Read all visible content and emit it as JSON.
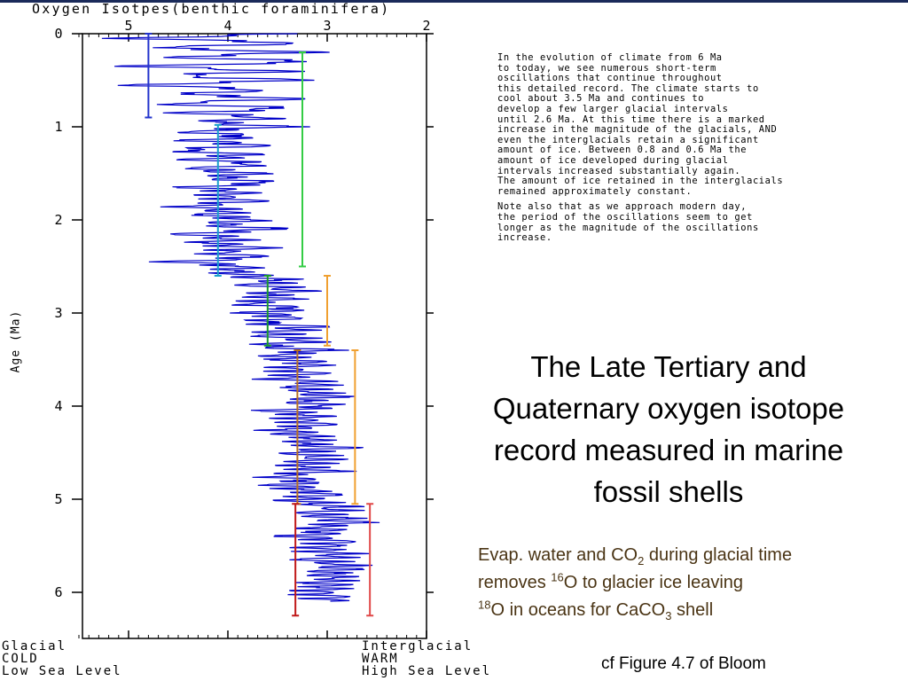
{
  "chart_data": {
    "type": "line",
    "title": "Oxygen Isotpes(benthic foraminifera)",
    "ylabel": "Age (Ma)",
    "xlim": [
      5.5,
      2.0
    ],
    "ylim": [
      0,
      6.5
    ],
    "x_ticks": [
      "5",
      "4",
      "3",
      "2"
    ],
    "x_tick_values": [
      5,
      4,
      3,
      2
    ],
    "y_ticks": [
      "0",
      "1",
      "2",
      "3",
      "4",
      "5",
      "6"
    ],
    "y_tick_values": [
      0,
      1,
      2,
      3,
      4,
      5,
      6
    ],
    "series": [
      {
        "age": [
          0.0,
          0.05,
          0.1,
          0.15,
          0.2,
          0.25,
          0.3,
          0.35,
          0.4,
          0.45,
          0.5,
          0.55,
          0.6,
          0.65,
          0.7,
          0.75,
          0.8,
          0.85,
          0.9,
          0.95,
          1.0,
          1.05,
          1.1,
          1.15,
          1.2,
          1.25,
          1.3,
          1.35,
          1.4,
          1.45,
          1.5,
          1.55,
          1.6,
          1.65,
          1.7,
          1.75,
          1.8,
          1.85,
          1.9,
          1.95,
          2.0,
          2.05,
          2.1,
          2.15,
          2.2,
          2.25,
          2.3,
          2.35,
          2.4,
          2.45,
          2.5,
          2.55,
          2.6,
          2.65,
          2.7,
          2.75,
          2.8,
          2.85,
          2.9,
          2.95,
          3.0,
          3.05,
          3.1,
          3.15,
          3.2,
          3.25,
          3.3,
          3.35,
          3.4,
          3.45,
          3.5,
          3.55,
          3.6,
          3.65,
          3.7,
          3.75,
          3.8,
          3.85,
          3.9,
          3.95,
          4.0,
          4.05,
          4.1,
          4.15,
          4.2,
          4.25,
          4.3,
          4.35,
          4.4,
          4.45,
          4.5,
          4.55,
          4.6,
          4.65,
          4.7,
          4.75,
          4.8,
          4.85,
          4.9,
          4.95,
          5.0,
          5.05,
          5.1,
          5.15,
          5.2,
          5.25,
          5.3,
          5.35,
          5.4,
          5.45,
          5.5,
          5.55,
          5.6,
          5.65,
          5.7,
          5.75,
          5.8,
          5.85,
          5.9,
          5.95,
          6.0,
          6.05,
          6.1,
          6.15,
          6.2
        ],
        "d18o": [
          3.3,
          4.9,
          3.2,
          4.8,
          3.3,
          4.7,
          3.1,
          5.0,
          3.4,
          4.6,
          3.2,
          4.9,
          3.5,
          4.4,
          3.3,
          4.8,
          3.4,
          4.5,
          3.6,
          4.3,
          3.5,
          4.4,
          3.7,
          4.2,
          3.6,
          4.5,
          3.8,
          4.3,
          3.7,
          4.4,
          3.9,
          4.2,
          3.6,
          4.3,
          3.8,
          4.1,
          3.7,
          4.4,
          3.9,
          4.2,
          3.8,
          4.3,
          3.6,
          4.5,
          3.9,
          4.2,
          3.7,
          4.1,
          3.6,
          4.4,
          3.8,
          4.0,
          3.9,
          3.5,
          3.8,
          3.3,
          3.7,
          3.5,
          3.8,
          3.2,
          3.6,
          3.3,
          3.7,
          3.2,
          3.5,
          3.6,
          3.2,
          3.8,
          3.1,
          3.5,
          3.3,
          3.0,
          3.4,
          3.1,
          3.5,
          3.0,
          3.3,
          3.2,
          3.1,
          3.4,
          3.0,
          3.5,
          3.1,
          3.3,
          3.0,
          3.4,
          3.2,
          3.1,
          3.3,
          3.0,
          3.4,
          3.1,
          3.2,
          3.3,
          3.0,
          3.5,
          3.1,
          3.3,
          3.2,
          3.0,
          3.4,
          3.1,
          2.9,
          3.2,
          3.0,
          2.8,
          3.1,
          2.9,
          3.2,
          2.8,
          3.0,
          3.1,
          2.8,
          3.2,
          2.9,
          3.0,
          3.1,
          2.9,
          3.0,
          2.9,
          3.1,
          2.9,
          3.0
        ]
      }
    ],
    "range_bars": [
      {
        "color": "#2233cc",
        "x": 4.8,
        "age_from": 0.0,
        "age_to": 0.9
      },
      {
        "color": "#33cc44",
        "x": 3.25,
        "age_from": 0.2,
        "age_to": 2.5
      },
      {
        "color": "#1aa0cc",
        "x": 4.1,
        "age_from": 0.98,
        "age_to": 2.6
      },
      {
        "color": "#1a9a2a",
        "x": 3.6,
        "age_from": 2.6,
        "age_to": 3.35
      },
      {
        "color": "#f0a030",
        "x": 3.0,
        "age_from": 2.6,
        "age_to": 3.35
      },
      {
        "color": "#b87020",
        "x": 3.3,
        "age_from": 3.4,
        "age_to": 5.05
      },
      {
        "color": "#f0a030",
        "x": 2.72,
        "age_from": 3.4,
        "age_to": 5.05
      },
      {
        "color": "#c01818",
        "x": 3.32,
        "age_from": 5.05,
        "age_to": 6.25
      },
      {
        "color": "#e04848",
        "x": 2.57,
        "age_from": 5.05,
        "age_to": 6.25
      }
    ],
    "grid": false,
    "line_color": "#0000c8"
  },
  "footer_left": [
    "Glacial",
    "COLD",
    "Low Sea Level"
  ],
  "footer_right": [
    "Interglacial",
    "WARM",
    "High Sea Level"
  ],
  "note_paragraphs": [
    "In the evolution of climate from 6 Ma\nto today, we see numerous short-term\noscillations that continue throughout\nthis detailed record. The climate starts to\ncool about 3.5 Ma and continues to\ndevelop a few larger glacial intervals\nuntil 2.6 Ma. At this time there is a marked\nincrease in the magnitude of the glacials, AND\neven the interglacials retain a significant\namount of ice. Between 0.8 and 0.6 Ma the\namount of ice developed during glacial\nintervals increased substantially again.\nThe amount of ice retained in the interglacials\nremained approximately constant.",
    "Note also that as we approach modern day,\nthe period of the oscillations seem to get\nlonger as the magnitude of the oscillations\nincrease."
  ],
  "headline": "The Late Tertiary and Quaternary oxygen isotope record measured in marine fossil shells",
  "caption": {
    "l1a": "Evap. water and CO",
    "l1sub": "2",
    "l1b": "  during glacial time",
    "l2a": "removes ",
    "l2sup": "16",
    "l2b": "O to glacier ice leaving",
    "l3sup": "18",
    "l3a": "O in oceans for  CaCO",
    "l3sub": "3",
    "l3b": " shell"
  },
  "source_note": "cf Figure 4.7 of Bloom"
}
